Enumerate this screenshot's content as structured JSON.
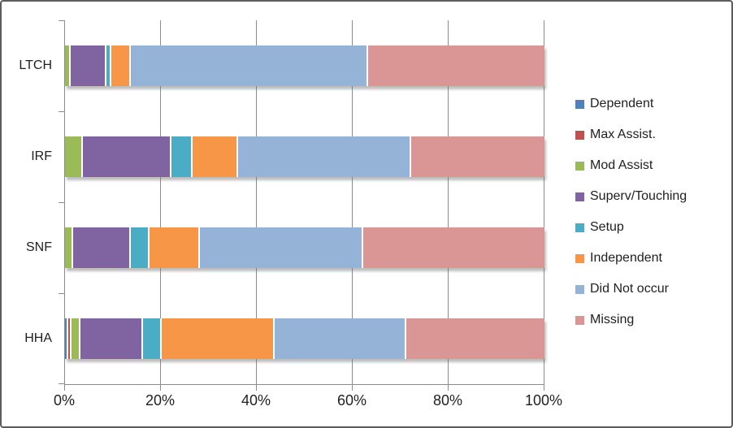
{
  "chart_data": {
    "type": "bar",
    "variant": "horizontal-stacked",
    "title": "",
    "xlabel": "",
    "ylabel": "",
    "categories": [
      "LTCH",
      "IRF",
      "SNF",
      "HHA"
    ],
    "series": [
      {
        "name": "Dependent",
        "color": "#4F81BD",
        "values": [
          0,
          0,
          0,
          0.4
        ]
      },
      {
        "name": "Max Assist.",
        "color": "#C0504D",
        "values": [
          0,
          0,
          0,
          0.8
        ]
      },
      {
        "name": "Mod Assist",
        "color": "#9BBB59",
        "values": [
          1,
          3.5,
          1.5,
          1.8
        ]
      },
      {
        "name": "Superv/Touching",
        "color": "#8064A2",
        "values": [
          7.5,
          18.5,
          12,
          13
        ]
      },
      {
        "name": "Setup",
        "color": "#4BACC6",
        "values": [
          1,
          4.5,
          4,
          4
        ]
      },
      {
        "name": "Independent",
        "color": "#F79646",
        "values": [
          4,
          9.5,
          10.5,
          23.5
        ]
      },
      {
        "name": "Did Not occur",
        "color": "#95B3D7",
        "values": [
          49.5,
          36,
          34,
          27.5
        ]
      },
      {
        "name": "Missing",
        "color": "#D99694",
        "values": [
          37,
          28,
          38,
          29
        ]
      }
    ],
    "x_ticks": [
      "0%",
      "20%",
      "40%",
      "60%",
      "80%",
      "100%"
    ],
    "xlim": [
      0,
      100
    ],
    "grid": true,
    "legend_position": "right",
    "axis_color": "#8C8C8C",
    "text_color": "#1F1F1F"
  }
}
